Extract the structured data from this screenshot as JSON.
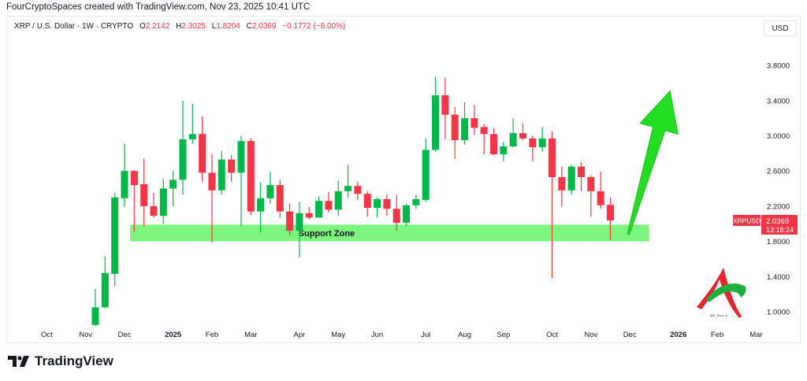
{
  "header": {
    "credit": "FourCryptoSpaces created with TradingView.com, Nov 23, 2025 10:41 UTC",
    "symbol": "XRP / U.S. Dollar · 1W · CRYPTO",
    "open_label": "O",
    "open": "2.2142",
    "high_label": "H",
    "high": "2.3025",
    "low_label": "L",
    "low": "1.8204",
    "close_label": "C",
    "close": "2.0369",
    "change": "−0.1772 (−8.00%)"
  },
  "currency_button": "USD",
  "price_tag": {
    "symbol": "XRPUSD",
    "price": "2.0369",
    "countdown": "13:18:24",
    "color": "#f23645"
  },
  "watermark": {
    "text": "@X_Four_tv"
  },
  "footer": {
    "brand": "TradingView"
  },
  "colors": {
    "up": "#00b84a",
    "down": "#f23645",
    "support_zone": "#7ef57e",
    "arrow": "#22dd22"
  },
  "chart_data": {
    "type": "candlestick",
    "interval": "1W",
    "y_ticks": [
      "3.8000",
      "3.4000",
      "3.0000",
      "2.6000",
      "2.2000",
      "1.8000",
      "1.4000",
      "1.0000"
    ],
    "ylim": [
      0.86,
      4.05
    ],
    "x_ticks": [
      {
        "label": "Oct",
        "date": "2024-10-07"
      },
      {
        "label": "Nov",
        "date": "2024-11-04"
      },
      {
        "label": "Dec",
        "date": "2024-12-02"
      },
      {
        "label": "2025",
        "date": "2025-01-06",
        "bold": true
      },
      {
        "label": "Feb",
        "date": "2025-02-03"
      },
      {
        "label": "Mar",
        "date": "2025-03-03"
      },
      {
        "label": "Apr",
        "date": "2025-04-07"
      },
      {
        "label": "May",
        "date": "2025-05-05"
      },
      {
        "label": "Jun",
        "date": "2025-06-02"
      },
      {
        "label": "Jul",
        "date": "2025-07-07"
      },
      {
        "label": "Aug",
        "date": "2025-08-04"
      },
      {
        "label": "Sep",
        "date": "2025-09-01"
      },
      {
        "label": "Oct",
        "date": "2025-10-06"
      },
      {
        "label": "Nov",
        "date": "2025-11-03"
      },
      {
        "label": "Dec",
        "date": "2025-12-01"
      },
      {
        "label": "2026",
        "date": "2026-01-05",
        "bold": true
      },
      {
        "label": "Feb",
        "date": "2026-02-02"
      },
      {
        "label": "Mar",
        "date": "2026-03-02"
      }
    ],
    "candles": [
      [
        "2024-11-11",
        0.85,
        1.26,
        0.84,
        1.05
      ],
      [
        "2024-11-18",
        1.05,
        1.63,
        1.04,
        1.44
      ],
      [
        "2024-11-25",
        1.43,
        2.35,
        1.29,
        2.3
      ],
      [
        "2024-12-02",
        2.29,
        2.91,
        2.19,
        2.6
      ],
      [
        "2024-12-09",
        2.6,
        2.61,
        1.91,
        2.44
      ],
      [
        "2024-12-16",
        2.45,
        2.74,
        1.97,
        2.2
      ],
      [
        "2024-12-23",
        2.2,
        2.35,
        2.07,
        2.09
      ],
      [
        "2024-12-30",
        2.09,
        2.51,
        2.0,
        2.4
      ],
      [
        "2025-01-06",
        2.4,
        2.6,
        2.2,
        2.5
      ],
      [
        "2025-01-13",
        2.5,
        3.4,
        2.33,
        2.96
      ],
      [
        "2025-01-20",
        2.96,
        3.36,
        2.91,
        3.02
      ],
      [
        "2025-01-27",
        3.02,
        3.22,
        2.48,
        2.58
      ],
      [
        "2025-02-03",
        2.58,
        2.79,
        1.79,
        2.38
      ],
      [
        "2025-02-10",
        2.38,
        2.83,
        2.33,
        2.73
      ],
      [
        "2025-02-17",
        2.73,
        2.78,
        2.48,
        2.58
      ],
      [
        "2025-02-24",
        2.58,
        3.0,
        1.97,
        2.94
      ],
      [
        "2025-03-03",
        2.94,
        2.97,
        2.1,
        2.14
      ],
      [
        "2025-03-10",
        2.14,
        2.47,
        1.9,
        2.29
      ],
      [
        "2025-03-17",
        2.29,
        2.59,
        2.23,
        2.44
      ],
      [
        "2025-03-24",
        2.44,
        2.5,
        2.07,
        2.14
      ],
      [
        "2025-03-31",
        2.14,
        2.23,
        1.87,
        1.92
      ],
      [
        "2025-04-07",
        1.92,
        2.25,
        1.62,
        2.12
      ],
      [
        "2025-04-14",
        2.12,
        2.19,
        2.05,
        2.07
      ],
      [
        "2025-04-21",
        2.07,
        2.31,
        2.07,
        2.26
      ],
      [
        "2025-04-28",
        2.26,
        2.36,
        2.13,
        2.16
      ],
      [
        "2025-05-05",
        2.16,
        2.49,
        2.09,
        2.37
      ],
      [
        "2025-05-12",
        2.37,
        2.67,
        2.3,
        2.43
      ],
      [
        "2025-05-19",
        2.43,
        2.48,
        2.27,
        2.34
      ],
      [
        "2025-05-26",
        2.34,
        2.37,
        2.08,
        2.18
      ],
      [
        "2025-06-02",
        2.18,
        2.3,
        2.07,
        2.28
      ],
      [
        "2025-06-09",
        2.28,
        2.33,
        2.09,
        2.17
      ],
      [
        "2025-06-16",
        2.17,
        2.33,
        1.92,
        2.01
      ],
      [
        "2025-06-23",
        2.01,
        2.23,
        1.97,
        2.21
      ],
      [
        "2025-06-30",
        2.21,
        2.33,
        2.17,
        2.28
      ],
      [
        "2025-07-07",
        2.27,
        2.97,
        2.25,
        2.84
      ],
      [
        "2025-07-14",
        2.84,
        3.67,
        2.82,
        3.46
      ],
      [
        "2025-07-21",
        3.46,
        3.66,
        2.96,
        3.24
      ],
      [
        "2025-07-28",
        3.24,
        3.33,
        2.74,
        2.95
      ],
      [
        "2025-08-04",
        2.95,
        3.38,
        2.9,
        3.2
      ],
      [
        "2025-08-11",
        3.2,
        3.35,
        3.01,
        3.09
      ],
      [
        "2025-08-18",
        3.1,
        3.13,
        2.79,
        3.02
      ],
      [
        "2025-08-25",
        3.02,
        3.09,
        2.78,
        2.79
      ],
      [
        "2025-09-01",
        2.79,
        2.93,
        2.71,
        2.88
      ],
      [
        "2025-09-08",
        2.88,
        3.2,
        2.87,
        3.03
      ],
      [
        "2025-09-15",
        3.03,
        3.14,
        2.95,
        2.97
      ],
      [
        "2025-09-22",
        2.97,
        3.0,
        2.71,
        2.87
      ],
      [
        "2025-09-29",
        2.87,
        3.1,
        2.82,
        2.97
      ],
      [
        "2025-10-06",
        2.97,
        3.05,
        1.38,
        2.53
      ],
      [
        "2025-10-13",
        2.53,
        2.65,
        2.2,
        2.38
      ],
      [
        "2025-10-20",
        2.38,
        2.67,
        2.33,
        2.65
      ],
      [
        "2025-10-27",
        2.65,
        2.7,
        2.37,
        2.53
      ],
      [
        "2025-11-03",
        2.53,
        2.55,
        2.08,
        2.37
      ],
      [
        "2025-11-10",
        2.37,
        2.59,
        2.17,
        2.21
      ],
      [
        "2025-11-17",
        2.2142,
        2.3025,
        1.8204,
        2.0369
      ]
    ],
    "annotations": {
      "support_zone": {
        "label": "Support Zone",
        "from": "2024-12-06",
        "to": "2025-12-15",
        "top": 1.99,
        "bottom": 1.8
      },
      "arrow": {
        "from_date": "2025-11-30",
        "from_price": 1.88,
        "to_date": "2025-12-30",
        "to_price": 3.51,
        "direction": "up"
      }
    }
  }
}
